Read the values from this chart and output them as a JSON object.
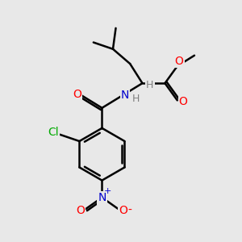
{
  "background_color": "#e8e8e8",
  "bond_color": "#000000",
  "atom_colors": {
    "O": "#ff0000",
    "N": "#0000cc",
    "Cl": "#00aa00",
    "C": "#000000",
    "H": "#808080"
  },
  "figsize": [
    3.0,
    3.0
  ],
  "dpi": 100
}
